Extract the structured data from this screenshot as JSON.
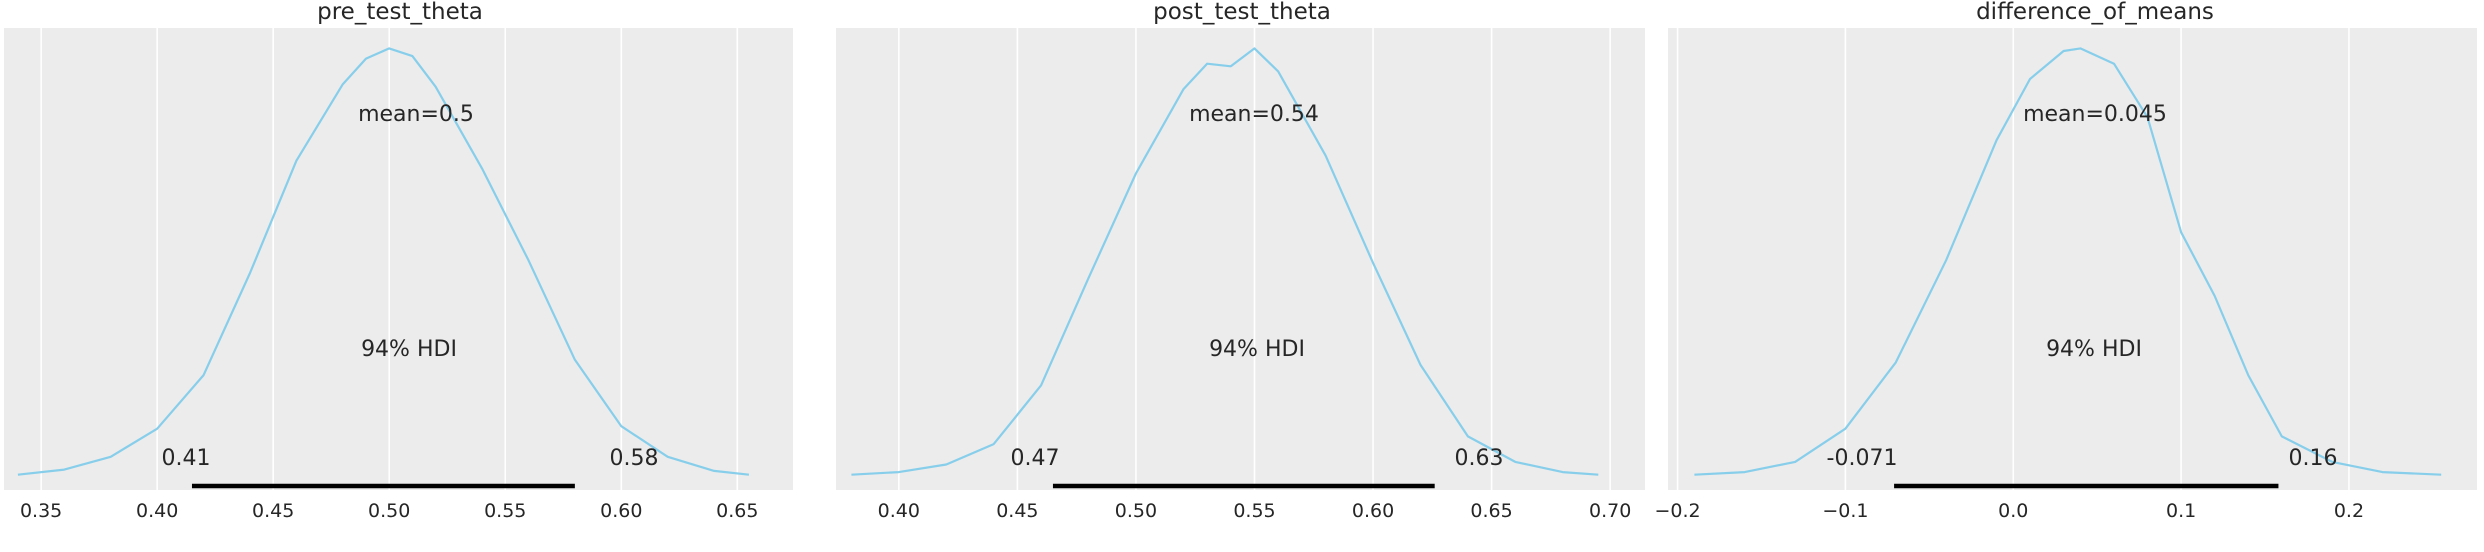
{
  "figure": {
    "background": "#ffffff",
    "panel_background": "#ececec",
    "grid_color": "#ffffff",
    "density_color": "#87ceeb",
    "hdi_color": "#000000",
    "text_color": "#262626"
  },
  "chart_data": [
    {
      "type": "line",
      "title": "pre_test_theta",
      "xlim": [
        0.334,
        0.674
      ],
      "ylim": [
        -0.5,
        17.6
      ],
      "xticks": [
        0.35,
        0.4,
        0.45,
        0.5,
        0.55,
        0.6,
        0.65
      ],
      "xtick_labels": [
        "0.35",
        "0.40",
        "0.45",
        "0.50",
        "0.55",
        "0.60",
        "0.65"
      ],
      "grid": true,
      "mean": 0.5,
      "mean_label": "mean=0.5",
      "hdi_prob_label": "94% HDI",
      "hdi": [
        0.415,
        0.58
      ],
      "hdi_low_label": "0.41",
      "hdi_high_label": "0.58",
      "density": {
        "x": [
          0.34,
          0.36,
          0.38,
          0.4,
          0.42,
          0.44,
          0.46,
          0.48,
          0.49,
          0.5,
          0.51,
          0.52,
          0.54,
          0.56,
          0.58,
          0.6,
          0.62,
          0.64,
          0.655
        ],
        "y": [
          0.1,
          0.3,
          0.8,
          1.9,
          4.0,
          8.0,
          12.4,
          15.4,
          16.4,
          16.8,
          16.5,
          15.3,
          12.1,
          8.5,
          4.6,
          2.0,
          0.8,
          0.25,
          0.1
        ]
      }
    },
    {
      "type": "line",
      "title": "post_test_theta",
      "xlim": [
        0.3735,
        0.7147
      ],
      "ylim": [
        -0.5,
        17.6
      ],
      "xticks": [
        0.4,
        0.45,
        0.5,
        0.55,
        0.6,
        0.65,
        0.7
      ],
      "xtick_labels": [
        "0.40",
        "0.45",
        "0.50",
        "0.55",
        "0.60",
        "0.65",
        "0.70"
      ],
      "grid": true,
      "mean": 0.54,
      "mean_label": "mean=0.54",
      "hdi_prob_label": "94% HDI",
      "hdi": [
        0.465,
        0.626
      ],
      "hdi_low_label": "0.47",
      "hdi_high_label": "0.63",
      "density": {
        "x": [
          0.38,
          0.4,
          0.42,
          0.44,
          0.46,
          0.48,
          0.5,
          0.52,
          0.53,
          0.54,
          0.55,
          0.56,
          0.58,
          0.6,
          0.62,
          0.64,
          0.66,
          0.68,
          0.695
        ],
        "y": [
          0.1,
          0.2,
          0.5,
          1.3,
          3.6,
          7.8,
          11.9,
          15.2,
          16.2,
          16.1,
          16.8,
          15.9,
          12.6,
          8.4,
          4.4,
          1.6,
          0.6,
          0.2,
          0.1
        ]
      }
    },
    {
      "type": "line",
      "title": "difference_of_means",
      "xlim": [
        -0.2057,
        0.2763
      ],
      "ylim": [
        -0.5,
        17.6
      ],
      "xticks": [
        -0.2,
        -0.1,
        0.0,
        0.1,
        0.2
      ],
      "xtick_labels": [
        "−0.2",
        "−0.1",
        "0.0",
        "0.1",
        "0.2"
      ],
      "grid": true,
      "mean": 0.045,
      "mean_label": "mean=0.045",
      "hdi_prob_label": "94% HDI",
      "hdi": [
        -0.071,
        0.158
      ],
      "hdi_low_label": "-0.071",
      "hdi_high_label": "0.16",
      "density": {
        "x": [
          -0.19,
          -0.16,
          -0.13,
          -0.1,
          -0.07,
          -0.04,
          -0.01,
          0.01,
          0.03,
          0.04,
          0.06,
          0.08,
          0.1,
          0.12,
          0.14,
          0.16,
          0.19,
          0.22,
          0.255
        ],
        "y": [
          0.1,
          0.2,
          0.6,
          1.9,
          4.5,
          8.5,
          13.2,
          15.6,
          16.7,
          16.8,
          16.2,
          14.1,
          9.6,
          7.1,
          4.0,
          1.6,
          0.6,
          0.2,
          0.1
        ]
      }
    }
  ]
}
